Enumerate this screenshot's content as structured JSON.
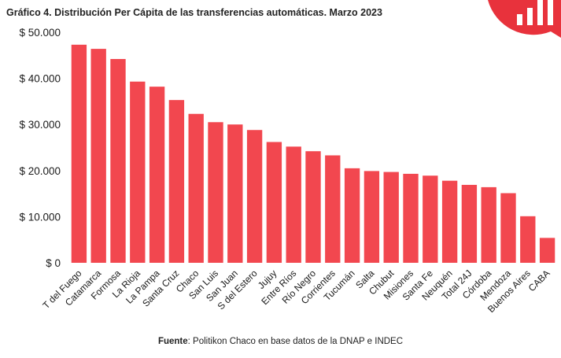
{
  "title": "Gráfico 4. Distribución Per Cápita de las transferencias automáticas. Marzo 2023",
  "source": {
    "label": "Fuente",
    "text": ": Politikon Chaco en base datos de la DNAP e INDEC"
  },
  "colors": {
    "bar": "#f2474f",
    "logo": "#e8323c",
    "axis_text": "#1a1a1a"
  },
  "chart_data": {
    "type": "bar",
    "title": "Gráfico 4. Distribución Per Cápita de las transferencias automáticas. Marzo 2023",
    "xlabel": "",
    "ylabel": "",
    "ylim": [
      0,
      50000
    ],
    "yticks": [
      0,
      10000,
      20000,
      30000,
      40000,
      50000
    ],
    "ytick_labels": [
      "$ 0",
      "$ 10.000",
      "$ 20.000",
      "$ 30.000",
      "$ 40.000",
      "$ 50.000"
    ],
    "grid": false,
    "legend": "none",
    "categories": [
      "T del Fuego",
      "Catamarca",
      "Formosa",
      "La Rioja",
      "La Pampa",
      "Santa Cruz",
      "Chaco",
      "San Luis",
      "San Juan",
      "S del Estero",
      "Jujuy",
      "Entre Ríos",
      "Río Negro",
      "Corrientes",
      "Tucumán",
      "Salta",
      "Chubut",
      "Misiones",
      "Santa Fe",
      "Neuquén",
      "Total 24J",
      "Córdoba",
      "Mendoza",
      "Buenos Aires",
      "CABA"
    ],
    "values": [
      47300,
      46400,
      44200,
      39300,
      38200,
      35300,
      32300,
      30500,
      30000,
      28800,
      26200,
      25200,
      24200,
      23300,
      20500,
      19900,
      19700,
      19300,
      18900,
      17800,
      16900,
      16400,
      15100,
      10100,
      5400
    ]
  }
}
